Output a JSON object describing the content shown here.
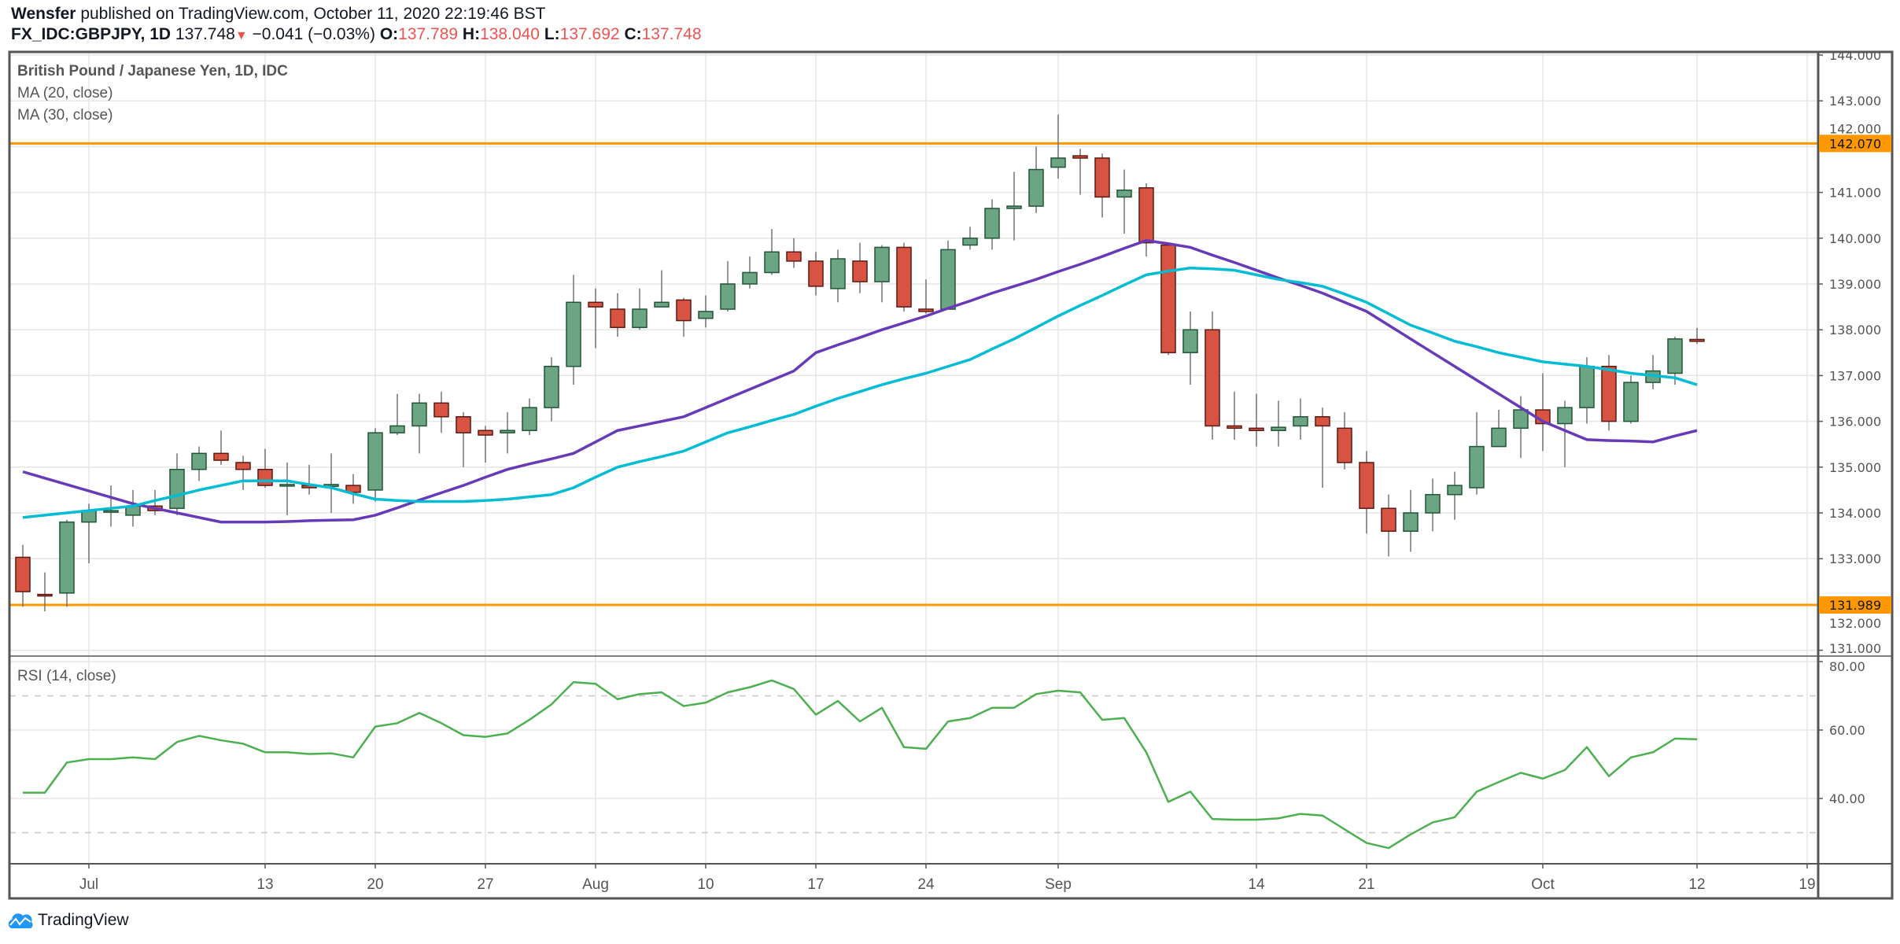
{
  "header": {
    "author": "Wensfer",
    "published": " published on TradingView.com, October 11, 2020 22:19:46 BST",
    "symbol": "FX_IDC:GBPJPY, 1D",
    "last": "137.748",
    "change": "−0.041 (−0.03%)",
    "o_label": "O:",
    "o": "137.789",
    "h_label": "H:",
    "h": "138.040",
    "l_label": "L:",
    "l": "137.692",
    "c_label": "C:",
    "c": "137.748",
    "direction_icon": "triangle-down-icon"
  },
  "legend": {
    "title": "British Pound / Japanese Yen, 1D, IDC",
    "ma20": "MA (20, close)",
    "ma30": "MA (30, close)",
    "rsi": "RSI (14, close)"
  },
  "logo": {
    "text": "TradingView",
    "icon": "tradingview-cloud-icon"
  },
  "colors": {
    "up_body": "#6ba583",
    "up_border": "#225437",
    "down_body": "#d75442",
    "down_border": "#5b1a13",
    "wick": "#737375",
    "ma20": "#673ab7",
    "ma30": "#00bcd4",
    "rsi": "#4caf50",
    "level": "#ff9800",
    "grid": "#e6e6e6"
  },
  "chart_data": [
    {
      "type": "candlestick",
      "pane": "price",
      "ylim": [
        131,
        144
      ],
      "yticks": [
        "131.000",
        "132.000",
        "133.000",
        "134.000",
        "135.000",
        "136.000",
        "137.000",
        "138.000",
        "139.000",
        "140.000",
        "141.000",
        "142.000",
        "143.000",
        "144.000"
      ],
      "grid": true,
      "horizontal_levels": [
        {
          "value": 142.07,
          "label": "142.070"
        },
        {
          "value": 131.989,
          "label": "131.989"
        }
      ],
      "xticks": [
        {
          "date": "2020-07-01",
          "label": "Jul"
        },
        {
          "date": "2020-07-13",
          "label": "13"
        },
        {
          "date": "2020-07-20",
          "label": "20"
        },
        {
          "date": "2020-07-27",
          "label": "27"
        },
        {
          "date": "2020-08-03",
          "label": "Aug"
        },
        {
          "date": "2020-08-10",
          "label": "10"
        },
        {
          "date": "2020-08-17",
          "label": "17"
        },
        {
          "date": "2020-08-24",
          "label": "24"
        },
        {
          "date": "2020-09-01",
          "label": "Sep"
        },
        {
          "date": "2020-09-14",
          "label": "14"
        },
        {
          "date": "2020-09-21",
          "label": "21"
        },
        {
          "date": "2020-10-01",
          "label": "Oct"
        },
        {
          "date": "2020-10-12",
          "label": "12"
        },
        {
          "date": "2020-10-19",
          "label": "19"
        }
      ],
      "columns": [
        "date",
        "open",
        "high",
        "low",
        "close"
      ],
      "candles": [
        [
          "2020-06-26",
          133.03,
          133.3,
          131.95,
          132.28
        ],
        [
          "2020-06-29",
          132.22,
          132.7,
          131.85,
          132.2
        ],
        [
          "2020-06-30",
          132.25,
          133.85,
          131.95,
          133.8
        ],
        [
          "2020-07-01",
          133.8,
          134.2,
          132.9,
          134.05
        ],
        [
          "2020-07-02",
          134.05,
          134.6,
          133.7,
          134.05
        ],
        [
          "2020-07-03",
          133.95,
          134.5,
          133.7,
          134.15
        ],
        [
          "2020-07-06",
          134.15,
          134.5,
          133.95,
          134.05
        ],
        [
          "2020-07-07",
          134.1,
          135.3,
          133.95,
          134.95
        ],
        [
          "2020-07-08",
          134.95,
          135.45,
          134.7,
          135.3
        ],
        [
          "2020-07-09",
          135.3,
          135.8,
          135.05,
          135.15
        ],
        [
          "2020-07-10",
          135.1,
          135.25,
          134.5,
          134.95
        ],
        [
          "2020-07-13",
          134.95,
          135.4,
          134.55,
          134.6
        ],
        [
          "2020-07-14",
          134.62,
          135.1,
          133.95,
          134.62
        ],
        [
          "2020-07-15",
          134.6,
          135.05,
          134.4,
          134.55
        ],
        [
          "2020-07-16",
          134.58,
          135.3,
          134.0,
          134.62
        ],
        [
          "2020-07-17",
          134.6,
          134.85,
          134.2,
          134.45
        ],
        [
          "2020-07-20",
          134.5,
          135.85,
          134.25,
          135.75
        ],
        [
          "2020-07-21",
          135.75,
          136.6,
          135.7,
          135.9
        ],
        [
          "2020-07-22",
          135.9,
          136.6,
          135.3,
          136.4
        ],
        [
          "2020-07-23",
          136.4,
          136.65,
          135.75,
          136.1
        ],
        [
          "2020-07-24",
          136.1,
          136.2,
          135.0,
          135.75
        ],
        [
          "2020-07-27",
          135.8,
          135.9,
          135.1,
          135.7
        ],
        [
          "2020-07-28",
          135.75,
          136.2,
          135.3,
          135.8
        ],
        [
          "2020-07-29",
          135.8,
          136.5,
          135.7,
          136.3
        ],
        [
          "2020-07-30",
          136.3,
          137.4,
          136.0,
          137.2
        ],
        [
          "2020-07-31",
          137.2,
          139.2,
          136.8,
          138.6
        ],
        [
          "2020-08-03",
          138.6,
          138.9,
          137.6,
          138.5
        ],
        [
          "2020-08-04",
          138.45,
          138.8,
          137.85,
          138.05
        ],
        [
          "2020-08-05",
          138.05,
          138.9,
          138.0,
          138.45
        ],
        [
          "2020-08-06",
          138.5,
          139.3,
          138.5,
          138.6
        ],
        [
          "2020-08-07",
          138.65,
          138.7,
          137.85,
          138.2
        ],
        [
          "2020-08-10",
          138.25,
          138.75,
          138.05,
          138.4
        ],
        [
          "2020-08-11",
          138.45,
          139.5,
          138.4,
          139.0
        ],
        [
          "2020-08-12",
          139.0,
          139.6,
          138.9,
          139.25
        ],
        [
          "2020-08-13",
          139.25,
          140.2,
          139.2,
          139.7
        ],
        [
          "2020-08-14",
          139.7,
          140.0,
          139.35,
          139.5
        ],
        [
          "2020-08-17",
          139.5,
          139.7,
          138.75,
          138.95
        ],
        [
          "2020-08-18",
          138.9,
          139.75,
          138.6,
          139.55
        ],
        [
          "2020-08-19",
          139.5,
          139.9,
          138.8,
          139.05
        ],
        [
          "2020-08-20",
          139.05,
          139.85,
          138.6,
          139.8
        ],
        [
          "2020-08-21",
          139.8,
          139.9,
          138.4,
          138.5
        ],
        [
          "2020-08-24",
          138.45,
          139.1,
          138.35,
          138.4
        ],
        [
          "2020-08-25",
          138.45,
          139.95,
          138.45,
          139.75
        ],
        [
          "2020-08-26",
          139.85,
          140.25,
          139.75,
          140.0
        ],
        [
          "2020-08-27",
          140.0,
          140.85,
          139.75,
          140.65
        ],
        [
          "2020-08-28",
          140.65,
          141.45,
          139.95,
          140.7
        ],
        [
          "2020-08-31",
          140.7,
          142.0,
          140.55,
          141.5
        ],
        [
          "2020-09-01",
          141.55,
          142.7,
          141.3,
          141.75
        ],
        [
          "2020-09-02",
          141.8,
          141.95,
          140.95,
          141.75
        ],
        [
          "2020-09-03",
          141.75,
          141.85,
          140.45,
          140.9
        ],
        [
          "2020-09-04",
          140.9,
          141.5,
          140.1,
          141.05
        ],
        [
          "2020-09-07",
          141.1,
          141.2,
          139.6,
          139.9
        ],
        [
          "2020-09-08",
          139.85,
          139.9,
          137.45,
          137.5
        ],
        [
          "2020-09-09",
          137.5,
          138.4,
          136.8,
          138.0
        ],
        [
          "2020-09-10",
          138.0,
          138.4,
          135.6,
          135.9
        ],
        [
          "2020-09-11",
          135.9,
          136.65,
          135.6,
          135.85
        ],
        [
          "2020-09-14",
          135.85,
          136.6,
          135.45,
          135.8
        ],
        [
          "2020-09-15",
          135.8,
          136.45,
          135.45,
          135.87
        ],
        [
          "2020-09-16",
          135.9,
          136.5,
          135.6,
          136.1
        ],
        [
          "2020-09-17",
          136.1,
          136.3,
          134.55,
          135.9
        ],
        [
          "2020-09-18",
          135.85,
          136.2,
          134.95,
          135.1
        ],
        [
          "2020-09-21",
          135.1,
          135.35,
          133.55,
          134.1
        ],
        [
          "2020-09-22",
          134.1,
          134.4,
          133.05,
          133.6
        ],
        [
          "2020-09-23",
          133.6,
          134.5,
          133.15,
          134.0
        ],
        [
          "2020-09-24",
          134.0,
          134.75,
          133.6,
          134.4
        ],
        [
          "2020-09-25",
          134.4,
          134.9,
          133.85,
          134.6
        ],
        [
          "2020-09-28",
          134.55,
          136.2,
          134.4,
          135.45
        ],
        [
          "2020-09-29",
          135.45,
          136.25,
          135.45,
          135.85
        ],
        [
          "2020-09-30",
          135.85,
          136.55,
          135.2,
          136.25
        ],
        [
          "2020-10-01",
          136.25,
          137.05,
          135.35,
          135.95
        ],
        [
          "2020-10-02",
          135.95,
          136.45,
          135.0,
          136.3
        ],
        [
          "2020-10-05",
          136.3,
          137.4,
          135.95,
          137.2
        ],
        [
          "2020-10-06",
          137.2,
          137.45,
          135.8,
          136.0
        ],
        [
          "2020-10-07",
          136.0,
          137.0,
          135.95,
          136.85
        ],
        [
          "2020-10-08",
          136.85,
          137.45,
          136.7,
          137.1
        ],
        [
          "2020-10-09",
          137.05,
          137.85,
          136.8,
          137.8
        ],
        [
          "2020-10-12",
          137.789,
          138.04,
          137.692,
          137.748
        ]
      ],
      "series": [
        {
          "name": "MA (20, close)",
          "values": [
            134.9,
            134.76,
            134.62,
            134.48,
            134.34,
            134.2,
            134.1,
            134.0,
            133.9,
            133.8,
            133.8,
            133.8,
            133.81,
            133.83,
            133.84,
            133.85,
            133.95,
            134.11,
            134.28,
            134.44,
            134.6,
            134.78,
            134.95,
            135.07,
            135.18,
            135.3,
            135.55,
            135.8,
            135.9,
            136.0,
            136.1,
            136.3,
            136.5,
            136.7,
            136.9,
            137.1,
            137.5,
            137.67,
            137.83,
            138.0,
            138.15,
            138.3,
            138.47,
            138.63,
            138.8,
            138.95,
            139.1,
            139.27,
            139.43,
            139.6,
            139.78,
            139.95,
            139.88,
            139.8,
            139.63,
            139.47,
            139.3,
            139.13,
            138.97,
            138.8,
            138.6,
            138.4,
            138.1,
            137.8,
            137.5,
            137.2,
            136.9,
            136.6,
            136.3,
            136.0,
            135.8,
            135.6,
            135.58,
            135.57,
            135.55,
            135.68,
            135.8
          ]
        },
        {
          "name": "MA (30, close)",
          "values": [
            133.9,
            133.95,
            134.0,
            134.05,
            134.1,
            134.15,
            134.27,
            134.38,
            134.5,
            134.6,
            134.7,
            134.7,
            134.7,
            134.62,
            134.55,
            134.42,
            134.3,
            134.27,
            134.25,
            134.25,
            134.25,
            134.27,
            134.3,
            134.35,
            134.4,
            134.55,
            134.78,
            135.0,
            135.12,
            135.23,
            135.35,
            135.55,
            135.75,
            135.88,
            136.02,
            136.15,
            136.33,
            136.5,
            136.65,
            136.8,
            136.93,
            137.05,
            137.2,
            137.35,
            137.58,
            137.8,
            138.05,
            138.3,
            138.53,
            138.75,
            138.98,
            139.2,
            139.28,
            139.35,
            139.33,
            139.3,
            139.2,
            139.1,
            139.03,
            138.95,
            138.78,
            138.6,
            138.35,
            138.1,
            137.93,
            137.75,
            137.63,
            137.5,
            137.4,
            137.3,
            137.25,
            137.2,
            137.13,
            137.05,
            137.0,
            136.95,
            136.8
          ]
        }
      ]
    },
    {
      "type": "line",
      "pane": "rsi",
      "title": "RSI (14, close)",
      "ylim": [
        20,
        82
      ],
      "yticks": [
        "40.00",
        "60.00",
        "80.00"
      ],
      "bands": [
        70,
        30
      ],
      "series": [
        {
          "name": "RSI (14, close)",
          "values": [
            41.7,
            41.7,
            50.5,
            51.5,
            51.5,
            52.0,
            51.5,
            56.5,
            58.3,
            57.0,
            56.0,
            53.5,
            53.5,
            53.0,
            53.2,
            52.0,
            61.0,
            62.0,
            65.0,
            62.0,
            58.5,
            58.0,
            59.0,
            63.0,
            67.5,
            74.0,
            73.5,
            69.0,
            70.5,
            71.0,
            67.0,
            68.0,
            71.0,
            72.5,
            74.5,
            72.0,
            64.5,
            68.5,
            62.5,
            66.5,
            55.0,
            54.5,
            62.5,
            63.5,
            66.5,
            66.5,
            70.5,
            71.5,
            71.0,
            63.0,
            63.5,
            53.5,
            39.0,
            42.0,
            34.0,
            33.8,
            33.8,
            34.2,
            35.5,
            35.0,
            31.0,
            27.0,
            25.5,
            29.5,
            33.0,
            34.5,
            42.0,
            44.8,
            47.5,
            45.8,
            48.3,
            55.0,
            46.5,
            52.0,
            53.5,
            57.5,
            57.3
          ]
        }
      ]
    }
  ]
}
